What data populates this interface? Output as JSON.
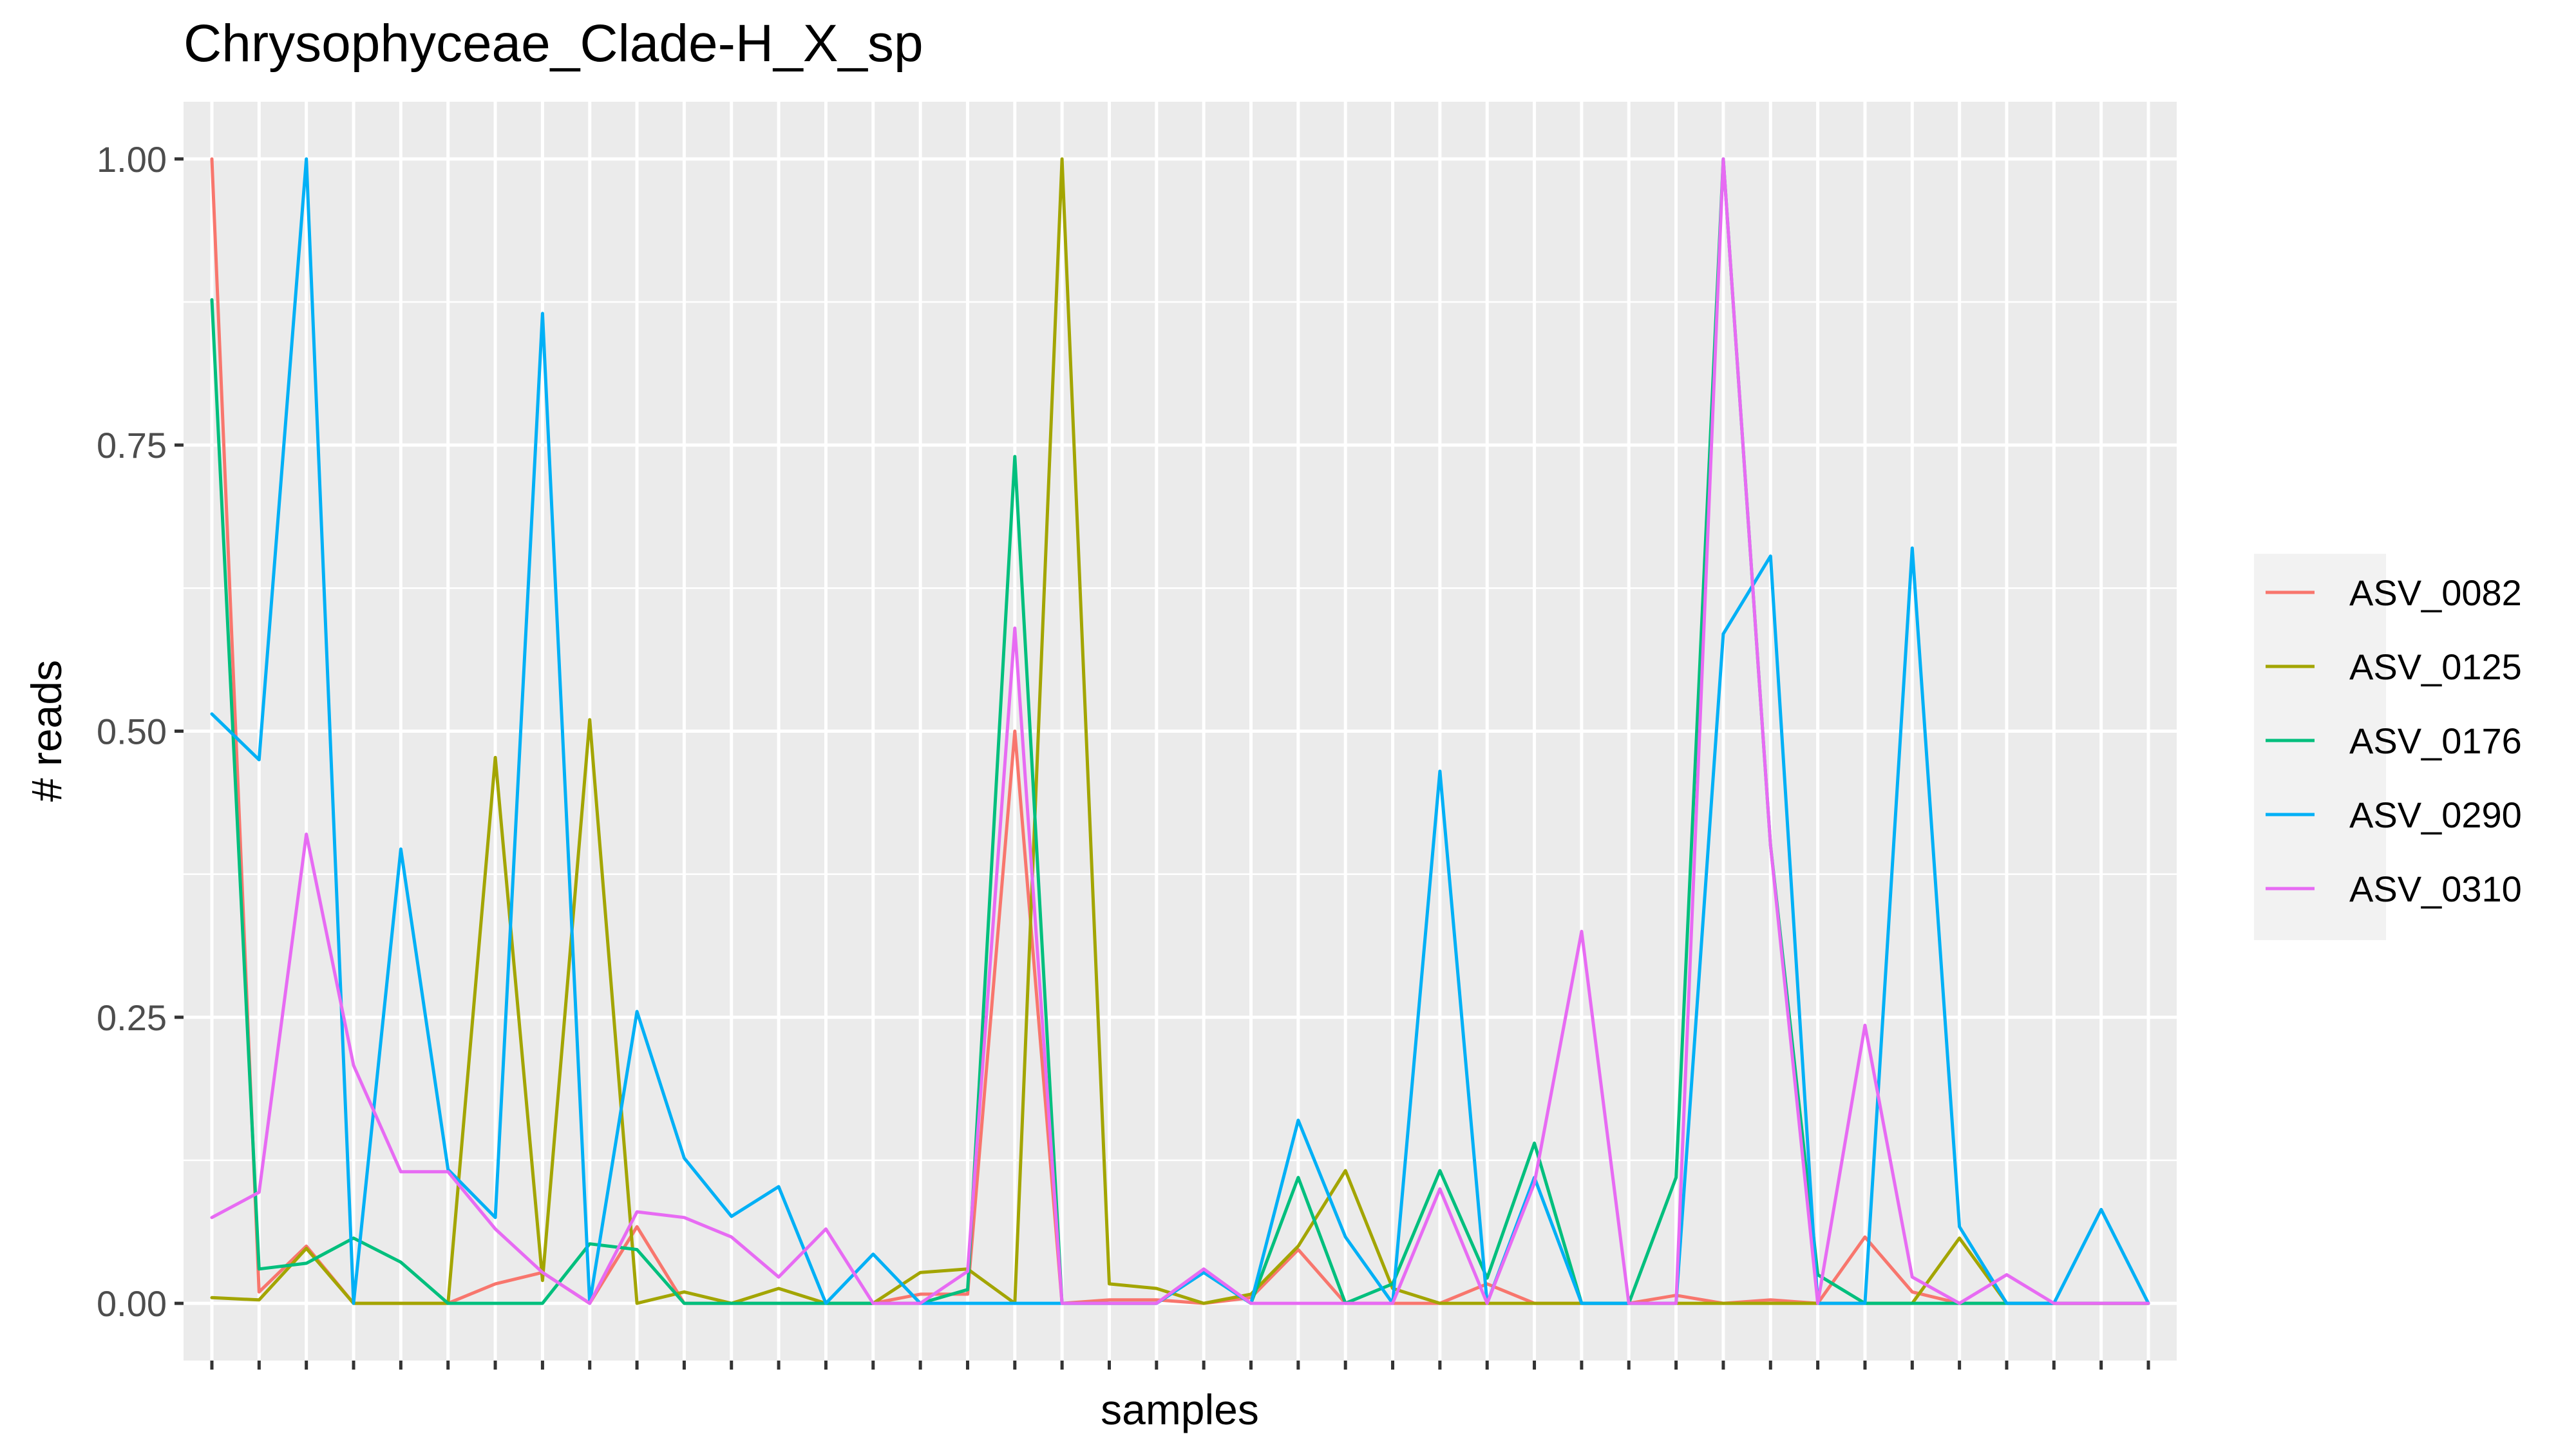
{
  "chart_data": {
    "type": "line",
    "title": "Chrysophyceae_Clade-H_X_sp",
    "xlabel": "samples",
    "ylabel": "# reads",
    "ylim": [
      -0.05,
      1.05
    ],
    "yticks": [
      "0.00",
      "0.25",
      "0.50",
      "0.75",
      "1.00"
    ],
    "ytick_values": [
      0,
      0.25,
      0.5,
      0.75,
      1.0
    ],
    "grid": true,
    "legend_position": "right",
    "x": [
      1,
      2,
      3,
      4,
      5,
      6,
      7,
      8,
      9,
      10,
      11,
      12,
      13,
      14,
      15,
      16,
      17,
      18,
      19,
      20,
      21,
      22,
      23,
      24,
      25,
      26,
      27,
      28,
      29,
      30,
      31,
      32,
      33,
      34,
      35,
      36,
      37,
      38,
      39,
      40,
      41,
      42
    ],
    "series": [
      {
        "name": "ASV_0082",
        "color": "#F8766D",
        "values": [
          1.0,
          0.01,
          0.05,
          0.0,
          0.0,
          0.0,
          0.017,
          0.027,
          0.0,
          0.067,
          0.0,
          0.0,
          0.0,
          0.0,
          0.0,
          0.008,
          0.008,
          0.5,
          0.0,
          0.003,
          0.003,
          0.0,
          0.005,
          0.047,
          0.0,
          0.0,
          0.0,
          0.017,
          0.0,
          0.0,
          0.0,
          0.007,
          0.0,
          0.003,
          0.0,
          0.058,
          0.01,
          0.0,
          0.0,
          0.0,
          0.0,
          0.0
        ]
      },
      {
        "name": "ASV_0125",
        "color": "#A3A500",
        "values": [
          0.005,
          0.003,
          0.048,
          0.0,
          0.0,
          0.0,
          0.477,
          0.02,
          0.51,
          0.0,
          0.01,
          0.0,
          0.013,
          0.0,
          0.0,
          0.027,
          0.03,
          0.0,
          1.0,
          0.017,
          0.013,
          0.0,
          0.008,
          0.05,
          0.116,
          0.013,
          0.0,
          0.0,
          0.0,
          0.0,
          0.0,
          0.0,
          0.0,
          0.0,
          0.0,
          0.0,
          0.0,
          0.057,
          0.0,
          0.0,
          0.0,
          0.0
        ]
      },
      {
        "name": "ASV_0176",
        "color": "#00BF7D",
        "values": [
          0.877,
          0.03,
          0.035,
          0.057,
          0.036,
          0.0,
          0.0,
          0.0,
          0.052,
          0.047,
          0.0,
          0.0,
          0.0,
          0.0,
          0.0,
          0.0,
          0.012,
          0.74,
          0.0,
          0.0,
          0.0,
          0.027,
          0.0,
          0.11,
          0.0,
          0.017,
          0.116,
          0.022,
          0.14,
          0.0,
          0.0,
          0.11,
          1.0,
          0.4,
          0.025,
          0.0,
          0.0,
          0.0,
          0.0,
          0.0,
          0.0,
          0.0
        ]
      },
      {
        "name": "ASV_0290",
        "color": "#00B0F6",
        "values": [
          0.515,
          0.475,
          1.0,
          0.0,
          0.397,
          0.117,
          0.075,
          0.865,
          0.0,
          0.255,
          0.127,
          0.076,
          0.102,
          0.0,
          0.043,
          0.0,
          0.0,
          0.0,
          0.0,
          0.0,
          0.0,
          0.027,
          0.0,
          0.16,
          0.058,
          0.0,
          0.465,
          0.0,
          0.11,
          0.0,
          0.0,
          0.0,
          0.585,
          0.653,
          0.0,
          0.0,
          0.66,
          0.067,
          0.0,
          0.0,
          0.082,
          0.0
        ]
      },
      {
        "name": "ASV_0310",
        "color": "#E76BF3",
        "values": [
          0.075,
          0.097,
          0.41,
          0.208,
          0.115,
          0.115,
          0.065,
          0.027,
          0.0,
          0.08,
          0.075,
          0.058,
          0.023,
          0.065,
          0.0,
          0.0,
          0.028,
          0.59,
          0.0,
          0.0,
          0.0,
          0.03,
          0.0,
          0.0,
          0.0,
          0.0,
          0.1,
          0.0,
          0.105,
          0.325,
          0.0,
          0.0,
          1.0,
          0.4,
          0.0,
          0.243,
          0.023,
          0.0,
          0.025,
          0.0,
          0.0,
          0.0
        ]
      }
    ]
  }
}
